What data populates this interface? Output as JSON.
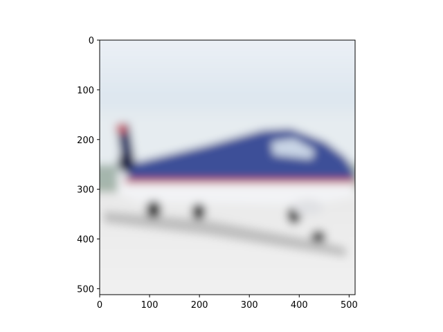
{
  "figure": {
    "image_description": "blurred photo of a blue and white airplane on a runway",
    "colors": {
      "sky": "#dfe7ef",
      "fuselage_blue": "#3b4d93",
      "fuselage_dark": "#2a3a78",
      "stripe_red": "#c2475c",
      "belly_white": "#f3f4f6",
      "ground": "#eeeeee",
      "shadow": "#9b9b9b"
    }
  },
  "axes": {
    "xlim": [
      0,
      512
    ],
    "ylim": [
      512,
      0
    ],
    "x_ticks": [
      {
        "value": 0,
        "label": "0"
      },
      {
        "value": 100,
        "label": "100"
      },
      {
        "value": 200,
        "label": "200"
      },
      {
        "value": 300,
        "label": "300"
      },
      {
        "value": 400,
        "label": "400"
      },
      {
        "value": 500,
        "label": "500"
      }
    ],
    "y_ticks": [
      {
        "value": 0,
        "label": "0"
      },
      {
        "value": 100,
        "label": "100"
      },
      {
        "value": 200,
        "label": "200"
      },
      {
        "value": 300,
        "label": "300"
      },
      {
        "value": 400,
        "label": "400"
      },
      {
        "value": 500,
        "label": "500"
      }
    ]
  }
}
